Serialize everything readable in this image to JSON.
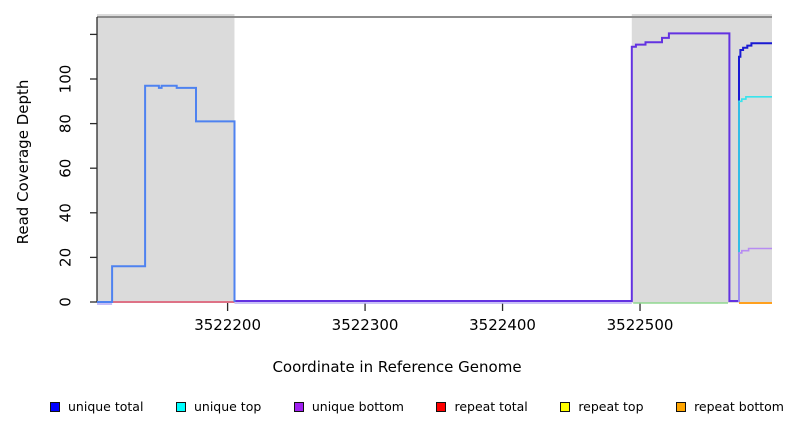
{
  "figure": {
    "x_axis": {
      "label": "Coordinate in Reference Genome",
      "tick_labels": [
        "3522200",
        "3522300",
        "3522400",
        "3522500"
      ],
      "tick_values": [
        3522200,
        3522300,
        3522400,
        3522500
      ]
    },
    "y_axis": {
      "label": "Read Coverage Depth",
      "tick_labels": [
        "0",
        "20",
        "40",
        "60",
        "80",
        "100"
      ],
      "tick_values": [
        0,
        20,
        40,
        60,
        80,
        100
      ],
      "unlabeled_tick_values": [
        120
      ]
    },
    "legend": [
      {
        "label": "unique total",
        "color": "#0000FF"
      },
      {
        "label": "unique top",
        "color": "#00FFFF"
      },
      {
        "label": "unique bottom",
        "color": "#A020F0"
      },
      {
        "label": "repeat total",
        "color": "#FF0000"
      },
      {
        "label": "repeat top",
        "color": "#FFFF00"
      },
      {
        "label": "repeat bottom",
        "color": "#FFA500"
      }
    ]
  },
  "chart_data": {
    "type": "line",
    "title": "",
    "xlabel": "Coordinate in Reference Genome",
    "ylabel": "Read Coverage Depth",
    "xlim": [
      3522105,
      3522596
    ],
    "ylim": [
      0,
      120
    ],
    "grid": false,
    "legend_position": "bottom",
    "background_color": "#FFFFFF",
    "shaded_region_color": "#DBDBDB",
    "shaded_regions": [
      {
        "x0": 3522105,
        "x1": 3522205
      },
      {
        "x0": 3522494,
        "x1": 3522596
      }
    ],
    "series": [
      {
        "name": "unique-bottom-pale-strand-left",
        "color": "#C4BCF8",
        "width": 2,
        "dy": 2,
        "points": [
          [
            3522105,
            0
          ],
          [
            3522116,
            0
          ]
        ]
      },
      {
        "name": "unique-bottom-pale-strand-mid",
        "color": "#B8AEF5",
        "width": 1.6,
        "dy": 1,
        "points": [
          [
            3522205,
            0
          ],
          [
            3522494,
            0
          ]
        ]
      },
      {
        "name": "repeat-total",
        "color": "#E0506A",
        "width": 1.6,
        "dy": 0,
        "points": [
          [
            3522105,
            0
          ],
          [
            3522205,
            0
          ]
        ]
      },
      {
        "name": "green-baseline",
        "color": "#90D890",
        "width": 1.6,
        "dy": 1,
        "points": [
          [
            3522495,
            0
          ],
          [
            3522564,
            0
          ]
        ]
      },
      {
        "name": "repeat-bottom",
        "color": "#FFA01E",
        "width": 2,
        "dy": 1,
        "points": [
          [
            3522572,
            0
          ],
          [
            3522596,
            0
          ]
        ]
      },
      {
        "name": "unique-bottom",
        "color": "#6332E1",
        "width": 2,
        "dy": -1,
        "points": [
          [
            3522205,
            0
          ],
          [
            3522494,
            0
          ],
          [
            3522494,
            114
          ],
          [
            3522497,
            114
          ],
          [
            3522497,
            115
          ],
          [
            3522504,
            115
          ],
          [
            3522504,
            116
          ],
          [
            3522516,
            116
          ],
          [
            3522516,
            118
          ],
          [
            3522521,
            118
          ],
          [
            3522521,
            120
          ],
          [
            3522565,
            120
          ],
          [
            3522565,
            0
          ],
          [
            3522572,
            0
          ]
        ]
      },
      {
        "name": "unique-total-left",
        "color": "#4E82F0",
        "width": 2,
        "dy": 0,
        "points": [
          [
            3522105,
            0
          ],
          [
            3522116,
            0
          ],
          [
            3522116,
            16
          ],
          [
            3522140,
            16
          ],
          [
            3522140,
            97
          ],
          [
            3522150,
            97
          ],
          [
            3522150,
            96
          ],
          [
            3522152,
            96
          ],
          [
            3522152,
            97
          ],
          [
            3522163,
            97
          ],
          [
            3522163,
            96
          ],
          [
            3522177,
            96
          ],
          [
            3522177,
            81
          ],
          [
            3522205,
            81
          ],
          [
            3522205,
            0
          ]
        ]
      },
      {
        "name": "unique-total-right",
        "color": "#1A1AD2",
        "width": 2,
        "dy": 0,
        "points": [
          [
            3522572,
            0
          ],
          [
            3522572,
            110
          ],
          [
            3522573,
            110
          ],
          [
            3522573,
            113
          ],
          [
            3522575,
            113
          ],
          [
            3522575,
            114
          ],
          [
            3522578,
            114
          ],
          [
            3522578,
            115
          ],
          [
            3522581,
            115
          ],
          [
            3522581,
            116
          ],
          [
            3522596,
            116
          ]
        ]
      },
      {
        "name": "unique-top-right",
        "color": "#38E4EC",
        "width": 1.6,
        "dy": 0,
        "points": [
          [
            3522572,
            0
          ],
          [
            3522572,
            90
          ],
          [
            3522574,
            90
          ],
          [
            3522574,
            91
          ],
          [
            3522577,
            91
          ],
          [
            3522577,
            92
          ],
          [
            3522596,
            92
          ]
        ]
      },
      {
        "name": "unique-bottom-right-pale",
        "color": "#B78CF2",
        "width": 1.6,
        "dy": 0,
        "points": [
          [
            3522572,
            0
          ],
          [
            3522572,
            22
          ],
          [
            3522574,
            22
          ],
          [
            3522574,
            23
          ],
          [
            3522579,
            23
          ],
          [
            3522579,
            24
          ],
          [
            3522596,
            24
          ]
        ]
      }
    ]
  }
}
